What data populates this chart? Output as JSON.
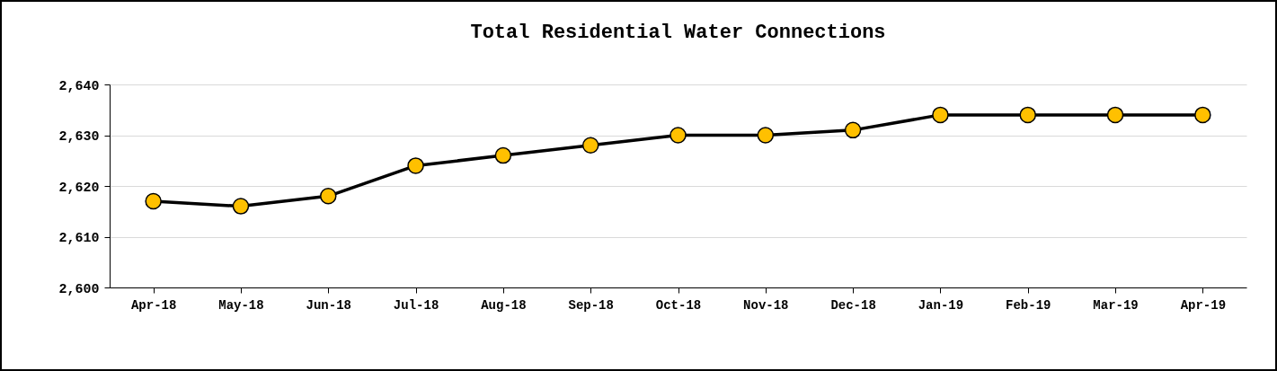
{
  "chart_data": {
    "type": "line",
    "title": "Total Residential Water Connections",
    "categories": [
      "Apr-18",
      "May-18",
      "Jun-18",
      "Jul-18",
      "Aug-18",
      "Sep-18",
      "Oct-18",
      "Nov-18",
      "Dec-18",
      "Jan-19",
      "Feb-19",
      "Mar-19",
      "Apr-19"
    ],
    "series": [
      {
        "color": "#ffc000",
        "values": [
          2617,
          2616,
          2618,
          2624,
          2626,
          2628,
          2630,
          2630,
          2631,
          2634,
          2634,
          2634,
          2634
        ]
      }
    ],
    "ylim": [
      2600,
      2640
    ],
    "yticks": [
      {
        "value": 2600,
        "label": "2,600"
      },
      {
        "value": 2610,
        "label": "2,610"
      },
      {
        "value": 2620,
        "label": "2,620"
      },
      {
        "value": 2630,
        "label": "2,630"
      },
      {
        "value": 2640,
        "label": "2,640"
      }
    ],
    "grid": "y",
    "marker": "circle",
    "legend": false
  }
}
